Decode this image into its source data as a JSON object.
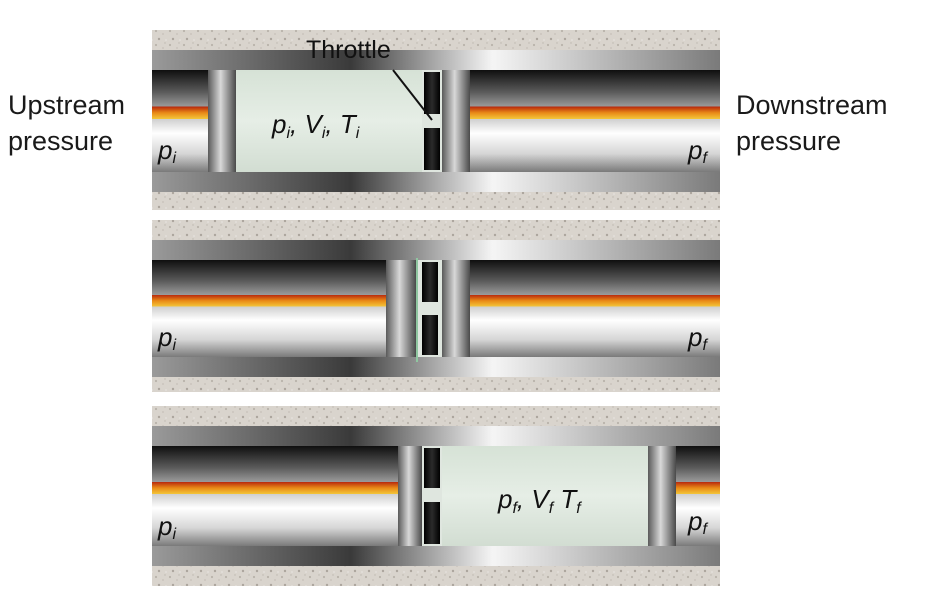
{
  "labels": {
    "upstream_line1": "Upstream",
    "upstream_line2": "pressure",
    "downstream_line1": "Downstream",
    "downstream_line2": "pressure",
    "throttle": "Throttle"
  },
  "panels": [
    {
      "left_p": "p",
      "left_sub": "i",
      "right_p": "p",
      "right_sub": "f",
      "gas_state": [
        "p",
        "i",
        "V",
        "i",
        "T",
        "i"
      ]
    },
    {
      "left_p": "p",
      "left_sub": "i",
      "right_p": "p",
      "right_sub": "f"
    },
    {
      "left_p": "p",
      "left_sub": "i",
      "right_p": "p",
      "right_sub": "f",
      "gas_state": [
        "p",
        "f",
        "V",
        "f",
        "T",
        "f"
      ]
    }
  ],
  "colors": {
    "gas": "#dfe8df",
    "pipe_dark": "#1e1e1e",
    "pipe_light": "#f2f2f2",
    "stripe_red": "#b8290d",
    "stripe_orange": "#e98a16",
    "stripe_yellow": "#f3c63a",
    "granite": "#d8d3cc"
  }
}
